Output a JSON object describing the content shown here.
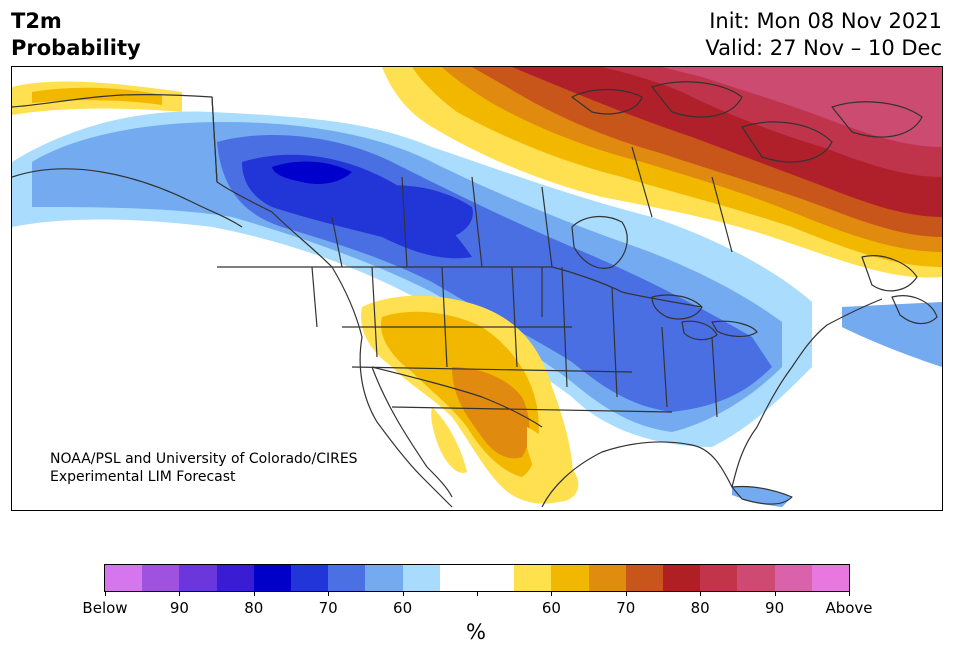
{
  "header": {
    "title_line1": "T2m",
    "title_line2": "Probability",
    "init": "Init: Mon 08 Nov 2021",
    "valid": "Valid: 27 Nov – 10 Dec"
  },
  "map": {
    "region": "North America",
    "credit_line1": "NOAA/PSL and University of Colorado/CIRES",
    "credit_line2": "Experimental LIM Forecast",
    "below_colors": [
      "#c56ce0",
      "#9d4fde",
      "#6a35d9",
      "#3b1fd6",
      "#0000cc",
      "#2236d8",
      "#4a6fe3",
      "#73aaf0",
      "#a9dcfd"
    ],
    "neutral_color": "#ffffff",
    "above_colors": [
      "#ffe050",
      "#f2b800",
      "#e08a10",
      "#c8561a",
      "#b0202a",
      "#c0344b",
      "#cc4b70",
      "#d865a8",
      "#e678dc"
    ]
  },
  "colorbar": {
    "colors": [
      "#d576ee",
      "#9f52e0",
      "#6b37dc",
      "#3a1cd4",
      "#0000c8",
      "#2236d8",
      "#4a70e3",
      "#74aaf0",
      "#a9dbfd",
      "#ffffff",
      "#ffffff",
      "#ffe04d",
      "#f2b700",
      "#e08c0f",
      "#c8561a",
      "#b01f23",
      "#c2344a",
      "#ce4a72",
      "#d962ab",
      "#e878df"
    ],
    "tick_labels": [
      "Below",
      "90",
      "80",
      "70",
      "60",
      "",
      "60",
      "70",
      "80",
      "90",
      "Above"
    ],
    "unit": "%"
  }
}
